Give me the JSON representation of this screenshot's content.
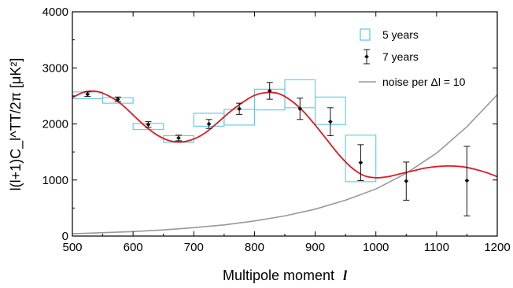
{
  "chart_data": {
    "type": "scatter",
    "xlabel": "Multipole moment",
    "xlabel_symbol": "l",
    "ylabel": "l(l+1)C_l^TT/2π [μK²]",
    "xlim": [
      500,
      1200
    ],
    "ylim": [
      0,
      4000
    ],
    "xticks": [
      500,
      600,
      700,
      800,
      900,
      1000,
      1100,
      1200
    ],
    "yticks": [
      0,
      1000,
      2000,
      3000,
      4000
    ],
    "legend_position": "top-right",
    "series": [
      {
        "name": "5 years",
        "kind": "boxes",
        "color": "#5bc8e6",
        "bins": [
          {
            "x0": 500,
            "x1": 550,
            "y0": 2450,
            "y1": 2570
          },
          {
            "x0": 550,
            "x1": 600,
            "y0": 2370,
            "y1": 2470
          },
          {
            "x0": 600,
            "x1": 650,
            "y0": 1900,
            "y1": 2010
          },
          {
            "x0": 650,
            "x1": 700,
            "y0": 1670,
            "y1": 1790
          },
          {
            "x0": 700,
            "x1": 750,
            "y0": 1960,
            "y1": 2190
          },
          {
            "x0": 750,
            "x1": 800,
            "y0": 1980,
            "y1": 2260
          },
          {
            "x0": 800,
            "x1": 850,
            "y0": 2250,
            "y1": 2620
          },
          {
            "x0": 850,
            "x1": 900,
            "y0": 2290,
            "y1": 2790
          },
          {
            "x0": 900,
            "x1": 950,
            "y0": 1990,
            "y1": 2480
          },
          {
            "x0": 950,
            "x1": 1000,
            "y0": 970,
            "y1": 1800
          }
        ]
      },
      {
        "name": "7 years",
        "kind": "errorbar",
        "color": "#111111",
        "points": [
          {
            "x": 525,
            "y": 2530,
            "lo": 2490,
            "hi": 2570
          },
          {
            "x": 575,
            "y": 2440,
            "lo": 2400,
            "hi": 2480
          },
          {
            "x": 625,
            "y": 1990,
            "lo": 1940,
            "hi": 2040
          },
          {
            "x": 675,
            "y": 1750,
            "lo": 1700,
            "hi": 1800
          },
          {
            "x": 725,
            "y": 2000,
            "lo": 1920,
            "hi": 2080
          },
          {
            "x": 775,
            "y": 2270,
            "lo": 2170,
            "hi": 2370
          },
          {
            "x": 825,
            "y": 2590,
            "lo": 2440,
            "hi": 2740
          },
          {
            "x": 875,
            "y": 2270,
            "lo": 2080,
            "hi": 2460
          },
          {
            "x": 925,
            "y": 2040,
            "lo": 1790,
            "hi": 2290
          },
          {
            "x": 975,
            "y": 1310,
            "lo": 990,
            "hi": 1630
          },
          {
            "x": 1050,
            "y": 980,
            "lo": 640,
            "hi": 1320
          },
          {
            "x": 1150,
            "y": 990,
            "lo": 360,
            "hi": 1600
          }
        ]
      },
      {
        "name": "noise per Δl = 10",
        "kind": "line",
        "color": "#999999",
        "x": [
          500,
          550,
          600,
          650,
          700,
          750,
          800,
          850,
          900,
          950,
          1000,
          1050,
          1100,
          1150,
          1200
        ],
        "y": [
          40,
          60,
          80,
          110,
          150,
          200,
          270,
          360,
          480,
          640,
          840,
          1120,
          1480,
          1950,
          2520
        ]
      },
      {
        "name": "",
        "kind": "line",
        "color": "#e0191f",
        "x": [
          500,
          520,
          540,
          560,
          580,
          600,
          620,
          640,
          660,
          680,
          700,
          720,
          740,
          760,
          780,
          800,
          820,
          840,
          860,
          880,
          900,
          920,
          940,
          960,
          980,
          1000,
          1020,
          1040,
          1060,
          1080,
          1100,
          1120,
          1140,
          1160,
          1180,
          1200
        ],
        "y": [
          2470,
          2570,
          2580,
          2500,
          2360,
          2160,
          1960,
          1800,
          1700,
          1680,
          1730,
          1850,
          2030,
          2220,
          2380,
          2510,
          2560,
          2540,
          2420,
          2230,
          1980,
          1710,
          1440,
          1220,
          1080,
          1040,
          1060,
          1110,
          1160,
          1210,
          1240,
          1250,
          1240,
          1200,
          1140,
          1060
        ]
      }
    ]
  }
}
